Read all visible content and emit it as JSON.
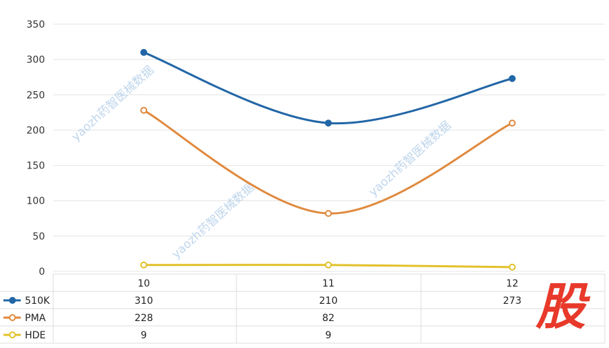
{
  "chart_data": {
    "type": "line",
    "categories": [
      "10",
      "11",
      "12"
    ],
    "series": [
      {
        "name": "510K",
        "values": [
          310,
          210,
          273
        ],
        "color": "#2266a6",
        "labels": [
          "310",
          "210",
          "273"
        ]
      },
      {
        "name": "PMA",
        "values": [
          228,
          82,
          210
        ],
        "color": "#e0893e",
        "labels": [
          "228",
          "82",
          ""
        ]
      },
      {
        "name": "HDE",
        "values": [
          9,
          9,
          6
        ],
        "color": "#e2c12a",
        "labels": [
          "9",
          "9",
          ""
        ]
      }
    ],
    "yticks": [
      "0",
      "50",
      "100",
      "150",
      "200",
      "250",
      "300",
      "350"
    ],
    "ylim": [
      0,
      350
    ],
    "grid": true,
    "legend": "data-table-left",
    "smooth": true
  },
  "watermark": "yaozh药智医械数据",
  "logo": "股"
}
